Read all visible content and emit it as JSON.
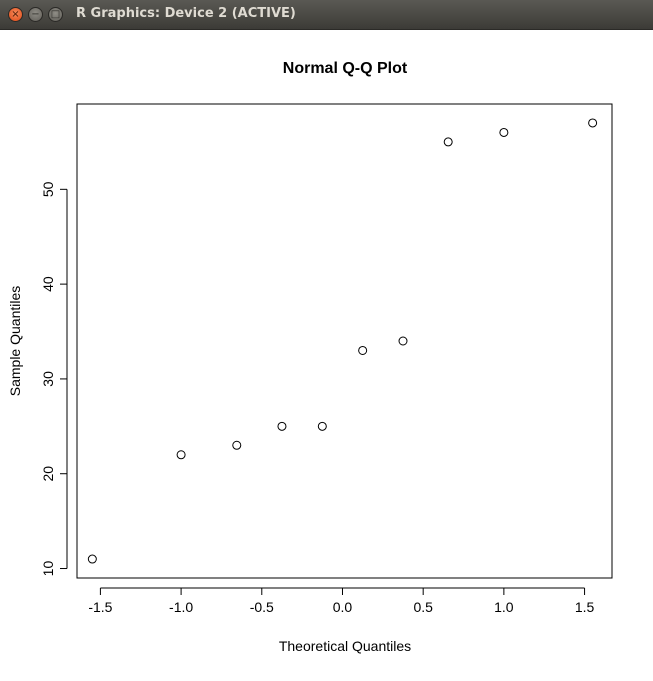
{
  "window": {
    "title": "R Graphics: Device 2 (ACTIVE)",
    "buttons": {
      "close": "×",
      "minimize": "−",
      "maximize": "□"
    }
  },
  "chart_data": {
    "type": "scatter",
    "title": "Normal Q-Q Plot",
    "xlabel": "Theoretical Quantiles",
    "ylabel": "Sample Quantiles",
    "xlim": [
      -1.645,
      1.67
    ],
    "ylim": [
      9.0,
      59.0
    ],
    "xticks": [
      -1.5,
      -1.0,
      -0.5,
      0.0,
      0.5,
      1.0,
      1.5
    ],
    "xtick_labels": [
      "-1.5",
      "-1.0",
      "-0.5",
      "0.0",
      "0.5",
      "1.0",
      "1.5"
    ],
    "yticks": [
      10,
      20,
      30,
      40,
      50
    ],
    "ytick_labels": [
      "10",
      "20",
      "30",
      "40",
      "50"
    ],
    "grid": false,
    "marker": "open-circle",
    "points": [
      {
        "x": -1.55,
        "y": 11
      },
      {
        "x": -1.0,
        "y": 22
      },
      {
        "x": -0.655,
        "y": 23
      },
      {
        "x": -0.375,
        "y": 25
      },
      {
        "x": -0.125,
        "y": 25
      },
      {
        "x": 0.125,
        "y": 33
      },
      {
        "x": 0.375,
        "y": 34
      },
      {
        "x": 0.655,
        "y": 55
      },
      {
        "x": 1.0,
        "y": 56
      },
      {
        "x": 1.55,
        "y": 57
      }
    ]
  }
}
